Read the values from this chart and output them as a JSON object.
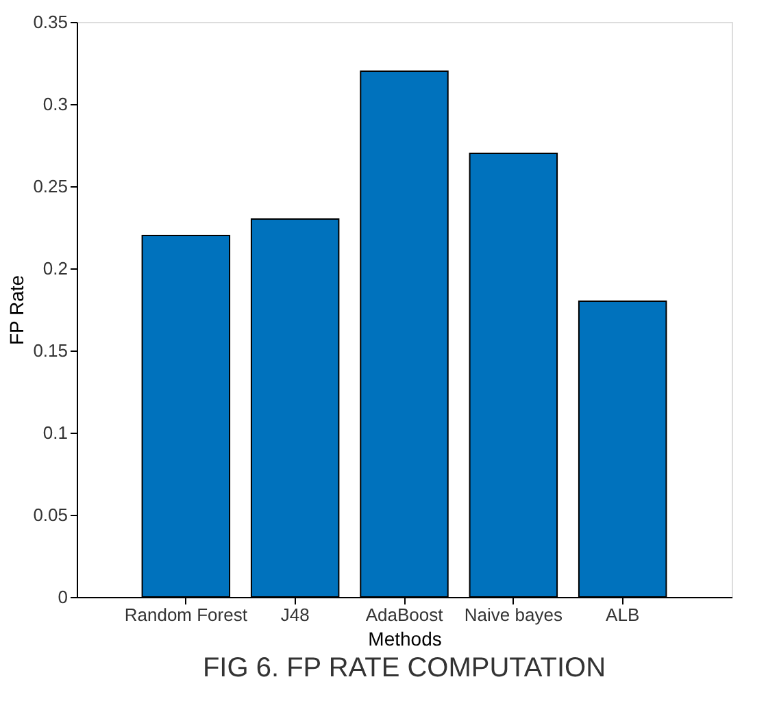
{
  "chart_data": {
    "type": "bar",
    "xlabel": "Methods",
    "ylabel": "FP Rate",
    "categories": [
      "Random Forest",
      "J48",
      "AdaBoost",
      "Naive bayes",
      "ALB"
    ],
    "values": [
      0.22,
      0.23,
      0.32,
      0.27,
      0.18
    ],
    "color": "#0072bd",
    "ylim": [
      0,
      0.35
    ],
    "yticks": [
      0,
      0.05,
      0.1,
      0.15,
      0.2,
      0.25,
      0.3,
      0.35
    ],
    "grid": false,
    "annotations": [
      "FIG 6. FP RATE COMPUTATION"
    ]
  }
}
